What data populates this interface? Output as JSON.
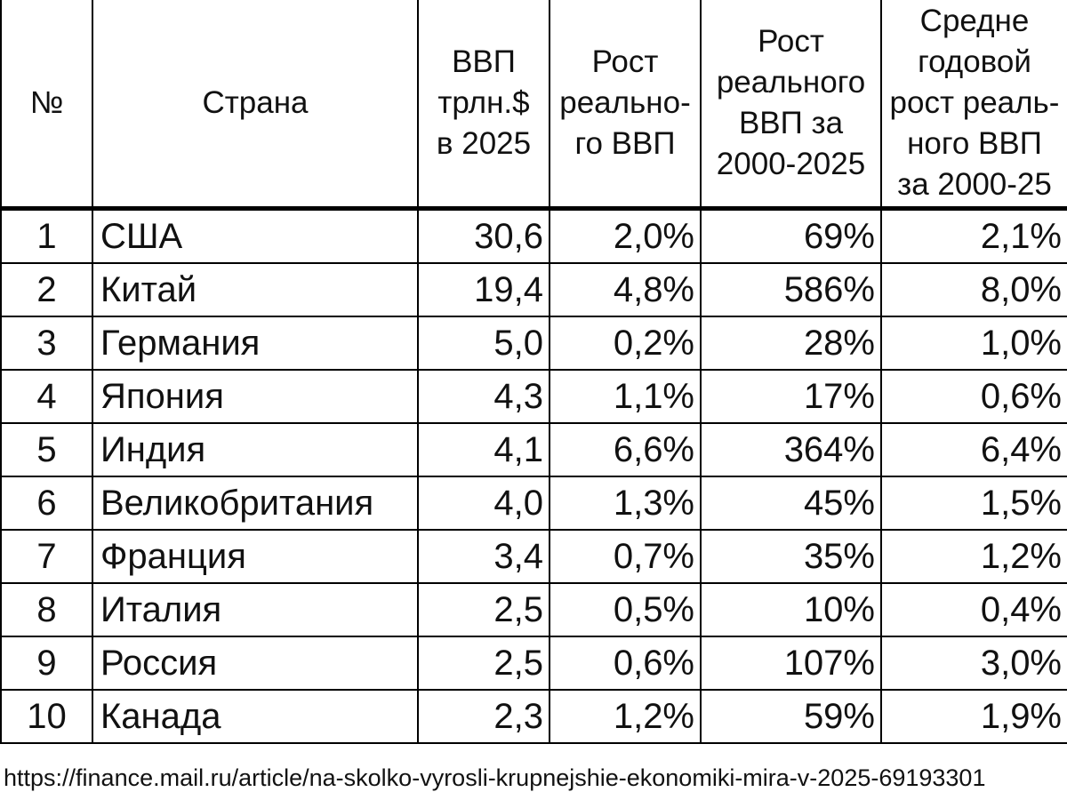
{
  "table": {
    "headers": [
      {
        "lines": [
          "№"
        ]
      },
      {
        "lines": [
          "Страна"
        ]
      },
      {
        "lines": [
          "ВВП",
          "трлн.$",
          "в 2025"
        ]
      },
      {
        "lines": [
          "Рост",
          "реально-",
          "го ВВП"
        ]
      },
      {
        "lines": [
          "Рост",
          "реального",
          "ВВП за",
          "2000-2025"
        ]
      },
      {
        "lines": [
          "Средне",
          "годовой",
          "рост реаль-",
          "ного ВВП",
          "за 2000-25"
        ]
      }
    ],
    "rows": [
      {
        "rank": "1",
        "country": "США",
        "gdp": "30,6",
        "growth": "2,0%",
        "growth_2000_2025": "69%",
        "avg_growth": "2,1%"
      },
      {
        "rank": "2",
        "country": "Китай",
        "gdp": "19,4",
        "growth": "4,8%",
        "growth_2000_2025": "586%",
        "avg_growth": "8,0%"
      },
      {
        "rank": "3",
        "country": "Германия",
        "gdp": "5,0",
        "growth": "0,2%",
        "growth_2000_2025": "28%",
        "avg_growth": "1,0%"
      },
      {
        "rank": "4",
        "country": "Япония",
        "gdp": "4,3",
        "growth": "1,1%",
        "growth_2000_2025": "17%",
        "avg_growth": "0,6%"
      },
      {
        "rank": "5",
        "country": "Индия",
        "gdp": "4,1",
        "growth": "6,6%",
        "growth_2000_2025": "364%",
        "avg_growth": "6,4%"
      },
      {
        "rank": "6",
        "country": "Великобритания",
        "gdp": "4,0",
        "growth": "1,3%",
        "growth_2000_2025": "45%",
        "avg_growth": "1,5%"
      },
      {
        "rank": "7",
        "country": "Франция",
        "gdp": "3,4",
        "growth": "0,7%",
        "growth_2000_2025": "35%",
        "avg_growth": "1,2%"
      },
      {
        "rank": "8",
        "country": "Италия",
        "gdp": "2,5",
        "growth": "0,5%",
        "growth_2000_2025": "10%",
        "avg_growth": "0,4%"
      },
      {
        "rank": "9",
        "country": "Россия",
        "gdp": "2,5",
        "growth": "0,6%",
        "growth_2000_2025": "107%",
        "avg_growth": "3,0%"
      },
      {
        "rank": "10",
        "country": "Канада",
        "gdp": "2,3",
        "growth": "1,2%",
        "growth_2000_2025": "59%",
        "avg_growth": "1,9%"
      }
    ]
  },
  "source_url": "https://finance.mail.ru/article/na-skolko-vyrosli-krupnejshie-ekonomiki-mira-v-2025-69193301"
}
